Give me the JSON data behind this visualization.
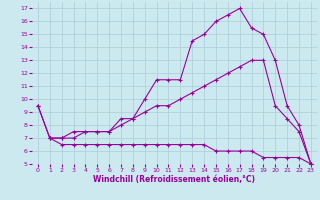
{
  "xlabel": "Windchill (Refroidissement éolien,°C)",
  "background_color": "#cce9f0",
  "grid_color": "#aacdd6",
  "line_color": "#990099",
  "xlim": [
    -0.5,
    23.5
  ],
  "ylim": [
    5,
    17.5
  ],
  "xticks": [
    0,
    1,
    2,
    3,
    4,
    5,
    6,
    7,
    8,
    9,
    10,
    11,
    12,
    13,
    14,
    15,
    16,
    17,
    18,
    19,
    20,
    21,
    22,
    23
  ],
  "yticks": [
    5,
    6,
    7,
    8,
    9,
    10,
    11,
    12,
    13,
    14,
    15,
    16,
    17
  ],
  "series1_x": [
    0,
    1,
    2,
    3,
    4,
    5,
    6,
    7,
    8,
    9,
    10,
    11,
    12,
    13,
    14,
    15,
    16,
    17,
    18,
    19,
    20,
    21,
    22,
    23
  ],
  "series1_y": [
    9.5,
    7.0,
    6.5,
    6.5,
    6.5,
    6.5,
    6.5,
    6.5,
    6.5,
    6.5,
    6.5,
    6.5,
    6.5,
    6.5,
    6.5,
    6.0,
    6.0,
    6.0,
    6.0,
    5.5,
    5.5,
    5.5,
    5.5,
    5.0
  ],
  "series2_x": [
    0,
    1,
    2,
    3,
    4,
    5,
    6,
    7,
    8,
    9,
    10,
    11,
    12,
    13,
    14,
    15,
    16,
    17,
    18,
    19,
    20,
    21,
    22,
    23
  ],
  "series2_y": [
    9.5,
    7.0,
    7.0,
    7.0,
    7.5,
    7.5,
    7.5,
    8.0,
    8.5,
    9.0,
    9.5,
    9.5,
    10.0,
    10.5,
    11.0,
    11.5,
    12.0,
    12.5,
    13.0,
    13.0,
    9.5,
    8.5,
    7.5,
    5.0
  ],
  "series3_x": [
    1,
    2,
    3,
    4,
    5,
    6,
    7,
    8,
    9,
    10,
    11,
    12,
    13,
    14,
    15,
    16,
    17,
    18,
    19,
    20,
    21,
    22,
    23
  ],
  "series3_y": [
    7.0,
    7.0,
    7.5,
    7.5,
    7.5,
    7.5,
    8.5,
    8.5,
    10.0,
    11.5,
    11.5,
    11.5,
    14.5,
    15.0,
    16.0,
    16.5,
    17.0,
    15.5,
    15.0,
    13.0,
    9.5,
    8.0,
    5.0
  ],
  "marker": "+",
  "markersize": 3,
  "linewidth": 0.8,
  "tick_fontsize": 4.5,
  "xlabel_fontsize": 5.5
}
